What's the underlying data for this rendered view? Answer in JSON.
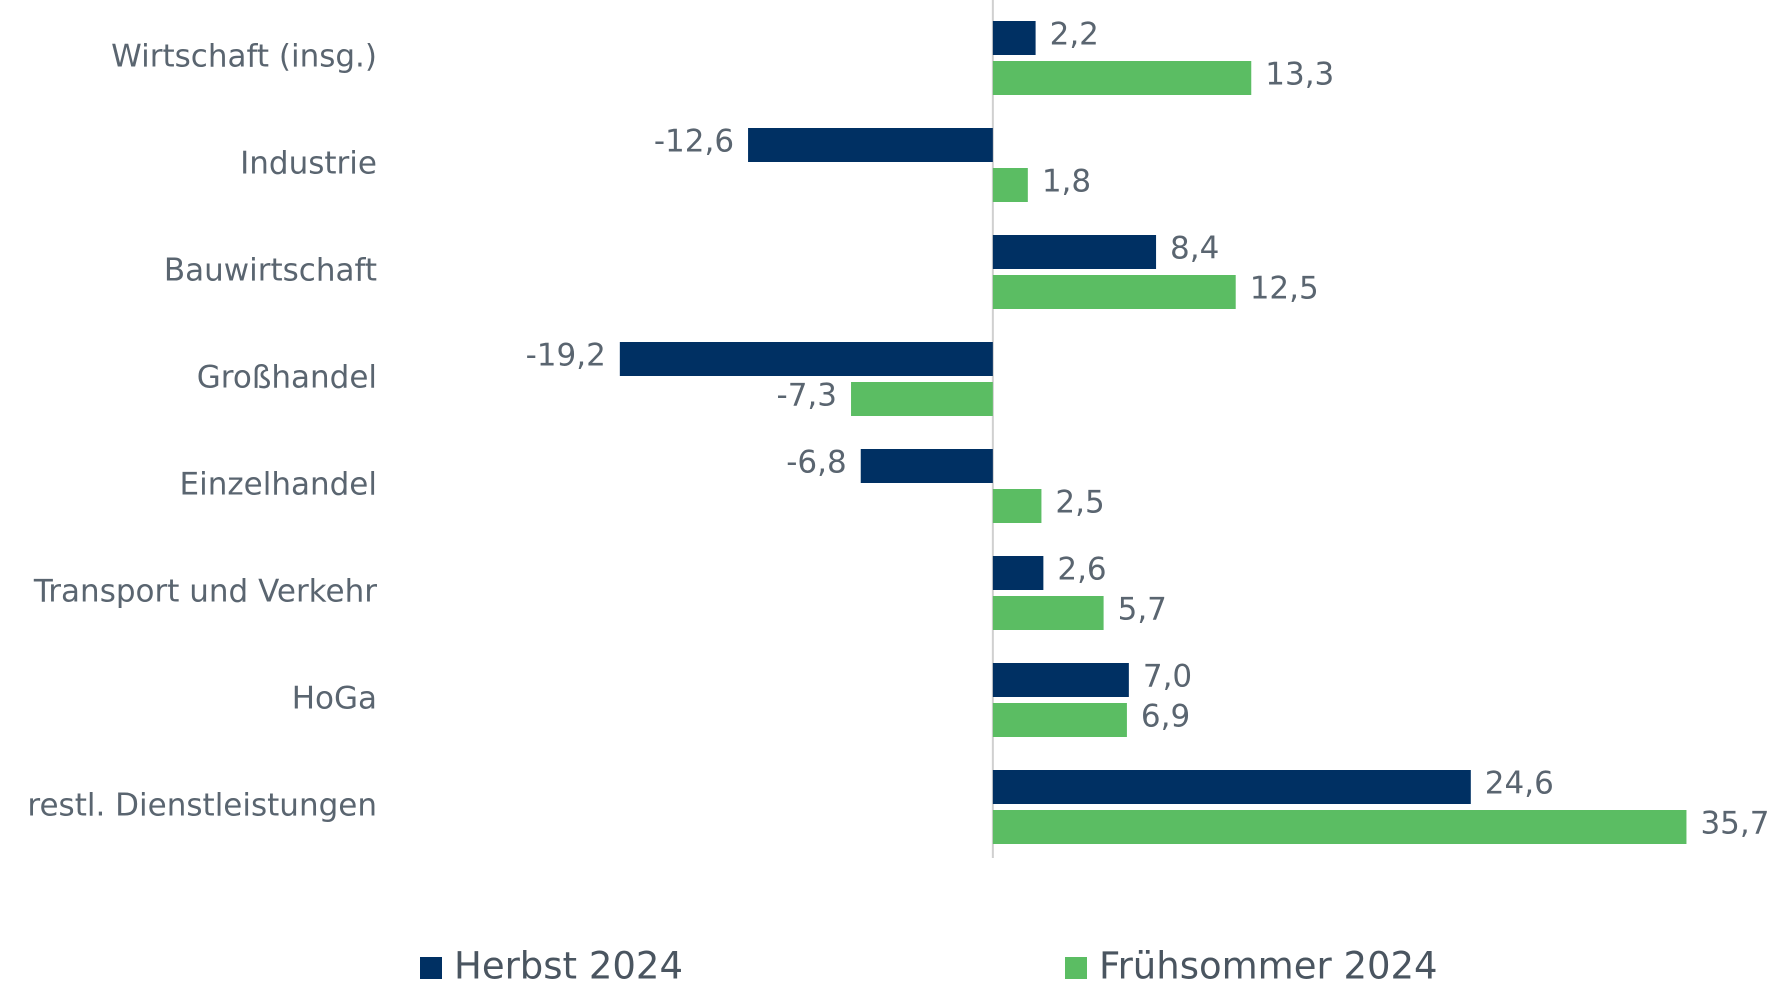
{
  "chart_data": {
    "type": "barh",
    "categories": [
      "Wirtschaft (insg.)",
      "Industrie",
      "Bauwirtschaft",
      "Großhandel",
      "Einzelhandel",
      "Transport und Verkehr",
      "HoGa",
      "restl. Dienstleistungen"
    ],
    "series": [
      {
        "name": "Herbst 2024",
        "color": "#003063",
        "values": [
          2.2,
          -12.6,
          8.4,
          -19.2,
          -6.8,
          2.6,
          7.0,
          24.6
        ],
        "value_labels": [
          "2,2",
          "-12,6",
          "8,4",
          "-19,2",
          "-6,8",
          "2,6",
          "7,0",
          "24,6"
        ]
      },
      {
        "name": "Frühsommer 2024",
        "color": "#5bbd63",
        "values": [
          13.3,
          1.8,
          12.5,
          -7.3,
          2.5,
          5.7,
          6.9,
          35.7
        ],
        "value_labels": [
          "13,3",
          "1,8",
          "12,5",
          "-7,3",
          "2,5",
          "5,7",
          "6,9",
          "35,7"
        ]
      }
    ],
    "xlim": [
      -30,
      40
    ],
    "legend": "bottom"
  }
}
